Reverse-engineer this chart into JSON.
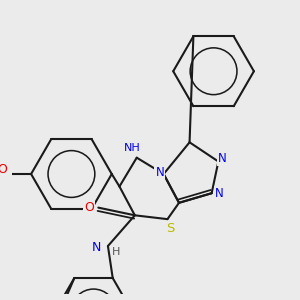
{
  "background_color": "#ebebeb",
  "bond_color": "#1a1a1a",
  "atom_colors": {
    "N": "#0000ee",
    "O": "#ee0000",
    "S": "#bbbb00",
    "H": "#555555",
    "C": "#1a1a1a"
  },
  "figsize": [
    3.0,
    3.0
  ],
  "dpi": 100
}
